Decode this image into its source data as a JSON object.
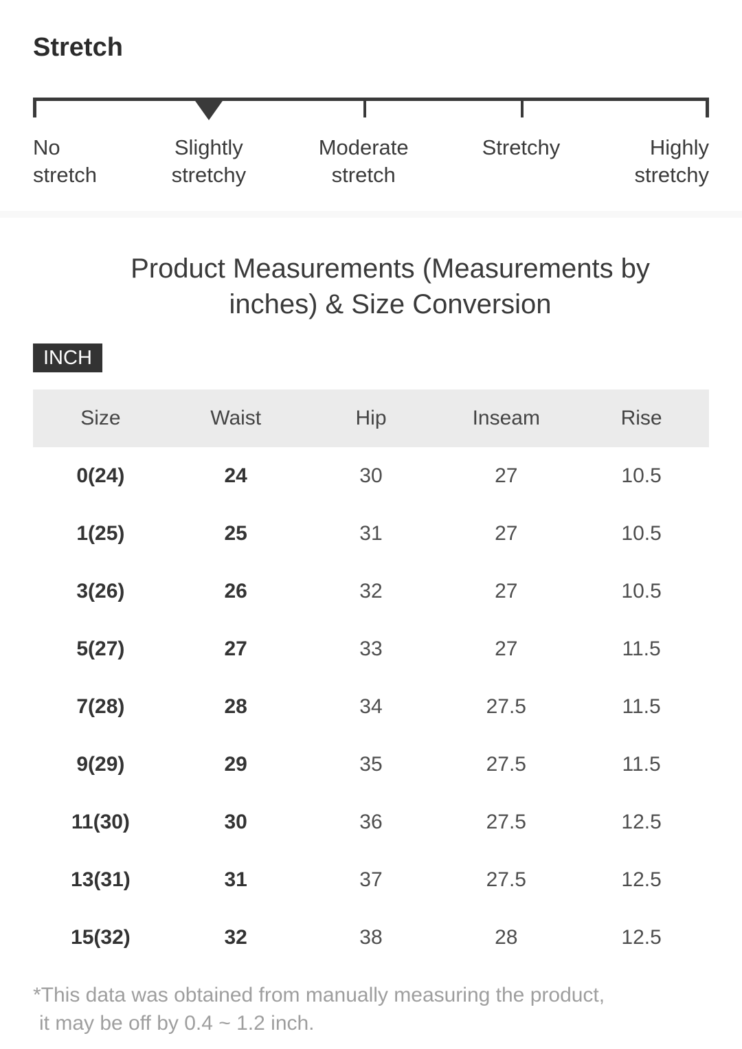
{
  "stretch": {
    "title": "Stretch",
    "selected_level": "Slightly stretchy",
    "selected_index": 1,
    "levels": [
      {
        "line1": "No",
        "line2": "stretch"
      },
      {
        "line1": "Slightly",
        "line2": "stretchy"
      },
      {
        "line1": "Moderate",
        "line2": "stretch"
      },
      {
        "line1": "Stretchy",
        "line2": ""
      },
      {
        "line1": "Highly",
        "line2": "stretchy"
      }
    ]
  },
  "measurements": {
    "title_line1": "Product Measurements (Measurements by",
    "title_line2": "inches) & Size Conversion",
    "unit_badge": "INCH",
    "table": {
      "columns": [
        "Size",
        "Waist",
        "Hip",
        "Inseam",
        "Rise"
      ],
      "rows": [
        [
          "0(24)",
          "24",
          "30",
          "27",
          "10.5"
        ],
        [
          "1(25)",
          "25",
          "31",
          "27",
          "10.5"
        ],
        [
          "3(26)",
          "26",
          "32",
          "27",
          "10.5"
        ],
        [
          "5(27)",
          "27",
          "33",
          "27",
          "11.5"
        ],
        [
          "7(28)",
          "28",
          "34",
          "27.5",
          "11.5"
        ],
        [
          "9(29)",
          "29",
          "35",
          "27.5",
          "11.5"
        ],
        [
          "11(30)",
          "30",
          "36",
          "27.5",
          "12.5"
        ],
        [
          "13(31)",
          "31",
          "37",
          "27.5",
          "12.5"
        ],
        [
          "15(32)",
          "32",
          "38",
          "28",
          "12.5"
        ]
      ]
    },
    "note_line1": "*This data was obtained from manually measuring the product,",
    "note_line2": "it may be off by 0.4 ~ 1.2 inch."
  },
  "colors": {
    "scale_ink": "#3a3a3a",
    "title_ink": "#2b2b2b",
    "table_header_bg": "#ebebeb",
    "table_bold_ink": "#333333",
    "table_ink": "#4d4d4d",
    "badge_bg": "#333333",
    "badge_text": "#ffffff",
    "divider_bg": "#f8f8f8",
    "footnote_ink": "#9e9e9e"
  }
}
